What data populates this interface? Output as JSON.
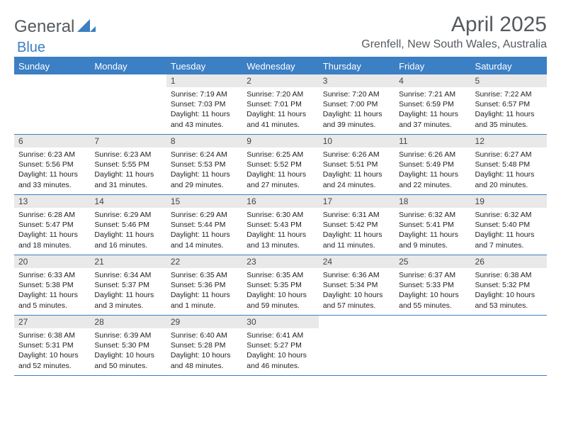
{
  "brand": {
    "name_a": "General",
    "name_b": "Blue",
    "color_a": "#555a5e",
    "color_b": "#3b7fc4"
  },
  "title": "April 2025",
  "location": "Grenfell, New South Wales, Australia",
  "colors": {
    "header_bg": "#3b7fc4",
    "header_text": "#ffffff",
    "daynum_bg": "#e9e9e9",
    "border": "#3b7fc4",
    "body_text": "#222222",
    "title_text": "#555a5e"
  },
  "fonts": {
    "title_size": 30,
    "location_size": 16,
    "weekday_size": 13,
    "cell_size": 10.5
  },
  "weekdays": [
    "Sunday",
    "Monday",
    "Tuesday",
    "Wednesday",
    "Thursday",
    "Friday",
    "Saturday"
  ],
  "weeks": [
    [
      {
        "n": "",
        "sr": "",
        "ss": "",
        "dl": ""
      },
      {
        "n": "",
        "sr": "",
        "ss": "",
        "dl": ""
      },
      {
        "n": "1",
        "sr": "Sunrise: 7:19 AM",
        "ss": "Sunset: 7:03 PM",
        "dl": "Daylight: 11 hours and 43 minutes."
      },
      {
        "n": "2",
        "sr": "Sunrise: 7:20 AM",
        "ss": "Sunset: 7:01 PM",
        "dl": "Daylight: 11 hours and 41 minutes."
      },
      {
        "n": "3",
        "sr": "Sunrise: 7:20 AM",
        "ss": "Sunset: 7:00 PM",
        "dl": "Daylight: 11 hours and 39 minutes."
      },
      {
        "n": "4",
        "sr": "Sunrise: 7:21 AM",
        "ss": "Sunset: 6:59 PM",
        "dl": "Daylight: 11 hours and 37 minutes."
      },
      {
        "n": "5",
        "sr": "Sunrise: 7:22 AM",
        "ss": "Sunset: 6:57 PM",
        "dl": "Daylight: 11 hours and 35 minutes."
      }
    ],
    [
      {
        "n": "6",
        "sr": "Sunrise: 6:23 AM",
        "ss": "Sunset: 5:56 PM",
        "dl": "Daylight: 11 hours and 33 minutes."
      },
      {
        "n": "7",
        "sr": "Sunrise: 6:23 AM",
        "ss": "Sunset: 5:55 PM",
        "dl": "Daylight: 11 hours and 31 minutes."
      },
      {
        "n": "8",
        "sr": "Sunrise: 6:24 AM",
        "ss": "Sunset: 5:53 PM",
        "dl": "Daylight: 11 hours and 29 minutes."
      },
      {
        "n": "9",
        "sr": "Sunrise: 6:25 AM",
        "ss": "Sunset: 5:52 PM",
        "dl": "Daylight: 11 hours and 27 minutes."
      },
      {
        "n": "10",
        "sr": "Sunrise: 6:26 AM",
        "ss": "Sunset: 5:51 PM",
        "dl": "Daylight: 11 hours and 24 minutes."
      },
      {
        "n": "11",
        "sr": "Sunrise: 6:26 AM",
        "ss": "Sunset: 5:49 PM",
        "dl": "Daylight: 11 hours and 22 minutes."
      },
      {
        "n": "12",
        "sr": "Sunrise: 6:27 AM",
        "ss": "Sunset: 5:48 PM",
        "dl": "Daylight: 11 hours and 20 minutes."
      }
    ],
    [
      {
        "n": "13",
        "sr": "Sunrise: 6:28 AM",
        "ss": "Sunset: 5:47 PM",
        "dl": "Daylight: 11 hours and 18 minutes."
      },
      {
        "n": "14",
        "sr": "Sunrise: 6:29 AM",
        "ss": "Sunset: 5:46 PM",
        "dl": "Daylight: 11 hours and 16 minutes."
      },
      {
        "n": "15",
        "sr": "Sunrise: 6:29 AM",
        "ss": "Sunset: 5:44 PM",
        "dl": "Daylight: 11 hours and 14 minutes."
      },
      {
        "n": "16",
        "sr": "Sunrise: 6:30 AM",
        "ss": "Sunset: 5:43 PM",
        "dl": "Daylight: 11 hours and 13 minutes."
      },
      {
        "n": "17",
        "sr": "Sunrise: 6:31 AM",
        "ss": "Sunset: 5:42 PM",
        "dl": "Daylight: 11 hours and 11 minutes."
      },
      {
        "n": "18",
        "sr": "Sunrise: 6:32 AM",
        "ss": "Sunset: 5:41 PM",
        "dl": "Daylight: 11 hours and 9 minutes."
      },
      {
        "n": "19",
        "sr": "Sunrise: 6:32 AM",
        "ss": "Sunset: 5:40 PM",
        "dl": "Daylight: 11 hours and 7 minutes."
      }
    ],
    [
      {
        "n": "20",
        "sr": "Sunrise: 6:33 AM",
        "ss": "Sunset: 5:38 PM",
        "dl": "Daylight: 11 hours and 5 minutes."
      },
      {
        "n": "21",
        "sr": "Sunrise: 6:34 AM",
        "ss": "Sunset: 5:37 PM",
        "dl": "Daylight: 11 hours and 3 minutes."
      },
      {
        "n": "22",
        "sr": "Sunrise: 6:35 AM",
        "ss": "Sunset: 5:36 PM",
        "dl": "Daylight: 11 hours and 1 minute."
      },
      {
        "n": "23",
        "sr": "Sunrise: 6:35 AM",
        "ss": "Sunset: 5:35 PM",
        "dl": "Daylight: 10 hours and 59 minutes."
      },
      {
        "n": "24",
        "sr": "Sunrise: 6:36 AM",
        "ss": "Sunset: 5:34 PM",
        "dl": "Daylight: 10 hours and 57 minutes."
      },
      {
        "n": "25",
        "sr": "Sunrise: 6:37 AM",
        "ss": "Sunset: 5:33 PM",
        "dl": "Daylight: 10 hours and 55 minutes."
      },
      {
        "n": "26",
        "sr": "Sunrise: 6:38 AM",
        "ss": "Sunset: 5:32 PM",
        "dl": "Daylight: 10 hours and 53 minutes."
      }
    ],
    [
      {
        "n": "27",
        "sr": "Sunrise: 6:38 AM",
        "ss": "Sunset: 5:31 PM",
        "dl": "Daylight: 10 hours and 52 minutes."
      },
      {
        "n": "28",
        "sr": "Sunrise: 6:39 AM",
        "ss": "Sunset: 5:30 PM",
        "dl": "Daylight: 10 hours and 50 minutes."
      },
      {
        "n": "29",
        "sr": "Sunrise: 6:40 AM",
        "ss": "Sunset: 5:28 PM",
        "dl": "Daylight: 10 hours and 48 minutes."
      },
      {
        "n": "30",
        "sr": "Sunrise: 6:41 AM",
        "ss": "Sunset: 5:27 PM",
        "dl": "Daylight: 10 hours and 46 minutes."
      },
      {
        "n": "",
        "sr": "",
        "ss": "",
        "dl": ""
      },
      {
        "n": "",
        "sr": "",
        "ss": "",
        "dl": ""
      },
      {
        "n": "",
        "sr": "",
        "ss": "",
        "dl": ""
      }
    ]
  ]
}
